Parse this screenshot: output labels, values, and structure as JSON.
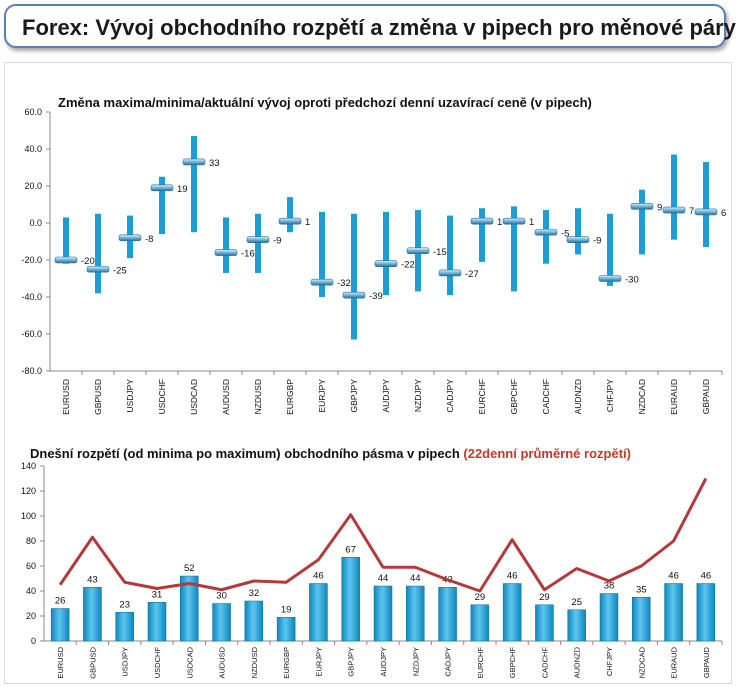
{
  "header": {
    "title": "Forex: Vývoj obchodního rozpětí a změna v pipech pro měnové páry"
  },
  "chart_data": [
    {
      "type": "range",
      "title": "Změna maxima/minima/aktuální vývoj oproti předchozí denní uzavírací ceně (v pipech)",
      "categories": [
        "EURUSD",
        "GBPUSD",
        "USDJPY",
        "USDCHF",
        "USDCAD",
        "AUDUSD",
        "NZDUSD",
        "EURGBP",
        "EURJPY",
        "GBPJPY",
        "AUDJPY",
        "NZDJPY",
        "CADJPY",
        "EURCHF",
        "GBPCHF",
        "CADCHF",
        "AUDNZD",
        "CHFJPY",
        "NZDCAD",
        "EURAUD",
        "GBPAUD"
      ],
      "high": [
        3,
        5,
        4,
        25,
        47,
        3,
        5,
        14,
        6,
        5,
        6,
        7,
        4,
        8,
        9,
        7,
        8,
        5,
        18,
        37,
        33
      ],
      "low": [
        -22,
        -38,
        -19,
        -6,
        -5,
        -27,
        -27,
        -5,
        -40,
        -63,
        -39,
        -37,
        -39,
        -21,
        -37,
        -22,
        -17,
        -34,
        -17,
        -9,
        -13
      ],
      "current": [
        -20,
        -25,
        -8,
        19,
        33,
        -16,
        -9,
        1,
        -32,
        -39,
        -22,
        -15,
        -27,
        1,
        1,
        -5,
        -9,
        -30,
        9,
        7,
        6
      ],
      "ylim": [
        -80,
        60
      ],
      "yticks": [
        "60.0",
        "40.0",
        "20.0",
        "0.0",
        "-20.0",
        "-40.0",
        "-60.0",
        "-80.0"
      ],
      "colors": {
        "bar": "#1a9fd4",
        "marker": "#6fb3d8"
      }
    },
    {
      "type": "bar+line",
      "title": "Dnešní rozpětí (od minima po maximum) obchodního pásma v pipech",
      "title_highlight": "(22denní průměrné rozpětí)",
      "categories": [
        "EURUSD",
        "GBPUSD",
        "USDJPY",
        "USDCHF",
        "USDCAD",
        "AUDUSD",
        "NZDUSD",
        "EURGBP",
        "EURJPY",
        "GBPJPY",
        "AUDJPY",
        "NZDJPY",
        "CADJPY",
        "EURCHF",
        "GBPCHF",
        "CADCHF",
        "AUDNZD",
        "CHFJPY",
        "NZDCAD",
        "EURAUD",
        "GBPAUD"
      ],
      "series": [
        {
          "type": "bar",
          "values": [
            26,
            43,
            23,
            31,
            52,
            30,
            32,
            19,
            46,
            67,
            44,
            44,
            43,
            29,
            46,
            29,
            25,
            38,
            35,
            46,
            46
          ]
        },
        {
          "type": "line",
          "values": [
            45,
            83,
            47,
            42,
            46,
            41,
            48,
            47,
            65,
            101,
            59,
            59,
            49,
            40,
            81,
            41,
            58,
            48,
            60,
            80,
            130
          ]
        }
      ],
      "ylim": [
        0,
        140
      ],
      "yticks": [
        "140",
        "120",
        "100",
        "80",
        "60",
        "40",
        "20",
        "0"
      ],
      "colors": {
        "bar": "#1a9fd4",
        "line": "#b23a3a",
        "title_highlight": "#c0392b"
      }
    }
  ]
}
